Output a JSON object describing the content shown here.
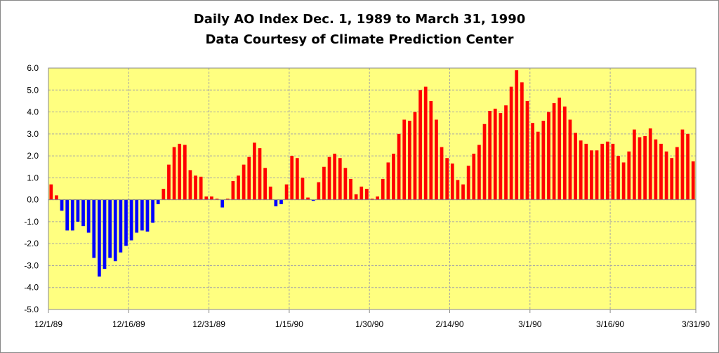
{
  "chart_data": {
    "type": "bar",
    "title": "Daily AO Index Dec. 1, 1989 to March 31, 1990",
    "subtitle": "Data Courtesy of Climate Prediction Center",
    "xlabel": "",
    "ylabel": "",
    "ylim": [
      -5.0,
      6.0
    ],
    "yticks": [
      "6.0",
      "5.0",
      "4.0",
      "3.0",
      "2.0",
      "1.0",
      "0.0",
      "-1.0",
      "-2.0",
      "-3.0",
      "-4.0",
      "-5.0"
    ],
    "ytick_values": [
      6,
      5,
      4,
      3,
      2,
      1,
      0,
      -1,
      -2,
      -3,
      -4,
      -5
    ],
    "xtick_labels": [
      "12/1/89",
      "12/16/89",
      "12/31/89",
      "1/15/90",
      "1/30/90",
      "2/14/90",
      "3/1/90",
      "3/16/90",
      "3/31/90"
    ],
    "xtick_day_index": [
      0,
      15,
      30,
      45,
      60,
      75,
      90,
      105,
      120
    ],
    "start_date": "12/1/89",
    "end_date": "3/31/90",
    "grid": true,
    "colors": {
      "positive": "#ff0000",
      "negative": "#0000ff",
      "plot_bg": "#ffff80",
      "grid": "#a6a6a6"
    },
    "values": [
      0.7,
      0.2,
      -0.5,
      -1.4,
      -1.4,
      -1.0,
      -1.2,
      -1.5,
      -2.65,
      -3.5,
      -3.15,
      -2.65,
      -2.8,
      -2.4,
      -2.1,
      -1.85,
      -1.5,
      -1.4,
      -1.45,
      -1.05,
      -0.2,
      0.5,
      1.6,
      2.4,
      2.55,
      2.5,
      1.35,
      1.1,
      1.05,
      0.15,
      0.15,
      0.05,
      -0.35,
      0.05,
      0.85,
      1.1,
      1.6,
      1.95,
      2.6,
      2.35,
      1.45,
      0.6,
      -0.3,
      -0.2,
      0.7,
      2.0,
      1.9,
      1.0,
      0.1,
      -0.05,
      0.8,
      1.5,
      1.95,
      2.1,
      1.9,
      1.45,
      0.95,
      0.25,
      0.6,
      0.5,
      0.05,
      0.15,
      0.95,
      1.7,
      2.1,
      3.0,
      3.65,
      3.6,
      4.0,
      5.0,
      5.15,
      4.5,
      3.65,
      2.4,
      1.9,
      1.65,
      0.9,
      0.7,
      1.55,
      2.1,
      2.5,
      3.45,
      4.05,
      4.15,
      3.95,
      4.3,
      5.15,
      5.9,
      5.35,
      4.5,
      3.5,
      3.1,
      3.6,
      4.0,
      4.4,
      4.65,
      4.25,
      3.65,
      3.05,
      2.7,
      2.55,
      2.25,
      2.25,
      2.55,
      2.65,
      2.55,
      2.0,
      1.7,
      2.2,
      3.2,
      2.85,
      2.9,
      3.25,
      2.75,
      2.55,
      2.2,
      1.9,
      2.4,
      3.2,
      3.0,
      1.75
    ]
  }
}
